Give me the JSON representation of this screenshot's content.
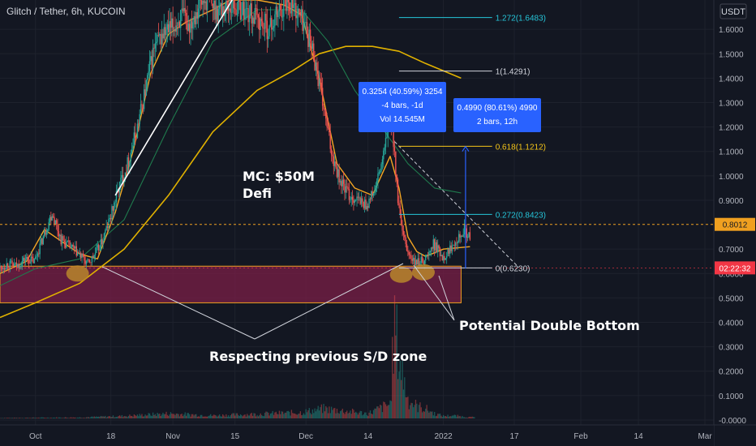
{
  "header": {
    "symbol_label": "Glitch / Tether, 6h, KUCOIN",
    "currency": "USDT"
  },
  "chart_data": {
    "type": "candlestick",
    "symbol": "Glitch / Tether",
    "interval": "6h",
    "exchange": "KUCOIN",
    "ylim": [
      -0.02,
      1.72
    ],
    "y_ticks": [
      {
        "value": 1.6,
        "label": "1.6000"
      },
      {
        "value": 1.5,
        "label": "1.5000"
      },
      {
        "value": 1.4,
        "label": "1.4000"
      },
      {
        "value": 1.3,
        "label": "1.3000"
      },
      {
        "value": 1.2,
        "label": "1.2000"
      },
      {
        "value": 1.1,
        "label": "1.1000"
      },
      {
        "value": 1.0,
        "label": "1.0000"
      },
      {
        "value": 0.9,
        "label": "0.9000"
      },
      {
        "value": 0.7,
        "label": "0.7000"
      },
      {
        "value": 0.6,
        "label": "0.6000"
      },
      {
        "value": 0.5,
        "label": "0.5000"
      },
      {
        "value": 0.4,
        "label": "0.4000"
      },
      {
        "value": 0.3,
        "label": "0.3000"
      },
      {
        "value": 0.2,
        "label": "0.2000"
      },
      {
        "value": 0.1,
        "label": "0.1000"
      },
      {
        "value": 0.0,
        "label": "-0.0000"
      }
    ],
    "x_ticks": [
      {
        "day": 0,
        "label": "Oct"
      },
      {
        "day": 17,
        "label": "18"
      },
      {
        "day": 31,
        "label": "Nov"
      },
      {
        "day": 45,
        "label": "15"
      },
      {
        "day": 61,
        "label": "Dec"
      },
      {
        "day": 75,
        "label": "14"
      },
      {
        "day": 92,
        "label": "2022"
      },
      {
        "day": 108,
        "label": "17"
      },
      {
        "day": 123,
        "label": "Feb"
      },
      {
        "day": 136,
        "label": "14"
      },
      {
        "day": 151,
        "label": "Mar"
      }
    ],
    "x_range_days": [
      -8,
      153
    ],
    "price_path": [
      [
        -8,
        0.62
      ],
      [
        -6,
        0.64
      ],
      [
        -4,
        0.63
      ],
      [
        -2,
        0.66
      ],
      [
        0,
        0.65
      ],
      [
        2,
        0.75
      ],
      [
        4,
        0.85
      ],
      [
        6,
        0.74
      ],
      [
        8,
        0.71
      ],
      [
        10,
        0.68
      ],
      [
        12,
        0.64
      ],
      [
        13,
        0.66
      ],
      [
        15,
        0.72
      ],
      [
        17,
        0.82
      ],
      [
        19,
        0.95
      ],
      [
        21,
        1.05
      ],
      [
        23,
        1.18
      ],
      [
        25,
        1.35
      ],
      [
        27,
        1.52
      ],
      [
        29,
        1.58
      ],
      [
        31,
        1.6
      ],
      [
        33,
        1.65
      ],
      [
        35,
        1.62
      ],
      [
        37,
        1.7
      ],
      [
        39,
        1.72
      ],
      [
        41,
        1.68
      ],
      [
        45,
        1.7
      ],
      [
        49,
        1.66
      ],
      [
        53,
        1.6
      ],
      [
        55,
        1.67
      ],
      [
        57,
        1.72
      ],
      [
        59,
        1.68
      ],
      [
        61,
        1.62
      ],
      [
        63,
        1.5
      ],
      [
        65,
        1.3
      ],
      [
        67,
        1.1
      ],
      [
        69,
        0.98
      ],
      [
        71,
        0.92
      ],
      [
        73,
        0.9
      ],
      [
        75,
        0.88
      ],
      [
        77,
        0.95
      ],
      [
        79,
        1.1
      ],
      [
        80,
        1.25
      ],
      [
        81,
        1.15
      ],
      [
        82,
        0.9
      ],
      [
        83,
        0.76
      ],
      [
        84,
        0.7
      ],
      [
        85,
        0.66
      ],
      [
        86,
        0.64
      ],
      [
        88,
        0.66
      ],
      [
        89,
        0.68
      ],
      [
        90,
        0.72
      ],
      [
        91,
        0.7
      ],
      [
        92,
        0.67
      ],
      [
        93,
        0.68
      ],
      [
        94,
        0.71
      ],
      [
        95,
        0.74
      ],
      [
        96,
        0.76
      ],
      [
        97,
        0.78
      ],
      [
        98,
        0.75
      ]
    ],
    "volume_path": [
      [
        -8,
        0.002
      ],
      [
        10,
        0.004
      ],
      [
        20,
        0.01
      ],
      [
        30,
        0.02
      ],
      [
        40,
        0.012
      ],
      [
        50,
        0.018
      ],
      [
        60,
        0.025
      ],
      [
        65,
        0.04
      ],
      [
        70,
        0.03
      ],
      [
        75,
        0.02
      ],
      [
        80,
        0.06
      ],
      [
        81,
        0.39
      ],
      [
        82,
        0.25
      ],
      [
        84,
        0.08
      ],
      [
        86,
        0.05
      ],
      [
        88,
        0.04
      ],
      [
        90,
        0.02
      ],
      [
        92,
        0.01
      ],
      [
        94,
        0.012
      ],
      [
        98,
        0.005
      ]
    ],
    "ema_short": [
      [
        -8,
        0.6
      ],
      [
        -2,
        0.65
      ],
      [
        2,
        0.78
      ],
      [
        6,
        0.73
      ],
      [
        10,
        0.68
      ],
      [
        14,
        0.66
      ],
      [
        18,
        0.85
      ],
      [
        22,
        1.1
      ],
      [
        26,
        1.42
      ],
      [
        30,
        1.58
      ],
      [
        34,
        1.63
      ],
      [
        40,
        1.68
      ],
      [
        44,
        1.72
      ],
      [
        50,
        1.72
      ],
      [
        56,
        1.7
      ],
      [
        60,
        1.66
      ],
      [
        64,
        1.4
      ],
      [
        68,
        1.05
      ],
      [
        72,
        0.95
      ],
      [
        76,
        0.92
      ],
      [
        80,
        1.08
      ],
      [
        82,
        0.95
      ],
      [
        84,
        0.75
      ],
      [
        86,
        0.69
      ],
      [
        88,
        0.67
      ],
      [
        92,
        0.7
      ],
      [
        98,
        0.71
      ]
    ],
    "ema_mid": [
      [
        -8,
        0.55
      ],
      [
        0,
        0.62
      ],
      [
        10,
        0.66
      ],
      [
        20,
        0.82
      ],
      [
        30,
        1.2
      ],
      [
        40,
        1.55
      ],
      [
        50,
        1.68
      ],
      [
        60,
        1.68
      ],
      [
        66,
        1.55
      ],
      [
        72,
        1.35
      ],
      [
        78,
        1.2
      ],
      [
        84,
        1.05
      ],
      [
        90,
        0.95
      ],
      [
        96,
        0.93
      ]
    ],
    "ema_long": [
      [
        -8,
        0.42
      ],
      [
        0,
        0.48
      ],
      [
        10,
        0.56
      ],
      [
        20,
        0.7
      ],
      [
        30,
        0.92
      ],
      [
        40,
        1.18
      ],
      [
        50,
        1.35
      ],
      [
        58,
        1.43
      ],
      [
        64,
        1.5
      ],
      [
        70,
        1.53
      ],
      [
        76,
        1.53
      ],
      [
        82,
        1.51
      ],
      [
        88,
        1.46
      ],
      [
        96,
        1.4
      ]
    ],
    "trendline": {
      "from": [
        18,
        0.92
      ],
      "to": [
        45,
        1.74
      ]
    },
    "projection_line": {
      "from": [
        81,
        1.14
      ],
      "to": [
        109,
        0.625
      ]
    },
    "current_price_line": 0.8012,
    "fib_levels": [
      {
        "ratio": "1.272",
        "value": 1.6483,
        "label": "1.272(1.6483)",
        "color": "#26c6da"
      },
      {
        "ratio": "1",
        "value": 1.4291,
        "label": "1(1.4291)",
        "color": "#d1d4dc"
      },
      {
        "ratio": "0.618",
        "value": 1.1212,
        "label": "0.618(1.1212)",
        "color": "#f5c518"
      },
      {
        "ratio": "0.272",
        "value": 0.8423,
        "label": "0.272(0.8423)",
        "color": "#26c6da"
      },
      {
        "ratio": "0",
        "value": 0.623,
        "label": "0(0.6230)",
        "color": "#d1d4dc"
      }
    ],
    "sd_zone": {
      "top": 0.63,
      "bottom": 0.48,
      "from_day": -8,
      "to_day": 96,
      "color": "#7b1f47"
    },
    "highlight_dots": [
      {
        "day": 9.5,
        "value": 0.6
      },
      {
        "day": 82.5,
        "value": 0.595
      },
      {
        "day": 87.5,
        "value": 0.605
      }
    ],
    "measure_boxes": [
      {
        "line1": "0.3254 (40.59%) 3254",
        "line2": "-4 bars, -1d",
        "line3": "Vol 14.545M"
      },
      {
        "line1": "0.4990 (80.61%) 4990",
        "line2": "2 bars, 12h"
      }
    ],
    "measure_arrow": {
      "day": 97,
      "from": 0.62,
      "to": 1.12
    },
    "annotations": {
      "mc_line1": "MC: $50M",
      "mc_line2": "Defi",
      "double_bottom": "Potential Double Bottom",
      "sd_zone_text": "Respecting previous S/D zone"
    },
    "price_labels": {
      "current": "0.8012",
      "timer": "02:22:32",
      "timer_price": 0.623
    },
    "colors": {
      "background": "#131722",
      "up": "#26a69a",
      "down": "#ef5350",
      "ema_short": "#f5a623",
      "ema_mid": "#1f7a4d",
      "ema_long": "#e0b100",
      "zone": "#7b1f47",
      "zone_border": "#f0a020",
      "dot": "#b8862b",
      "measure_box": "#2962ff",
      "current_price": "#f0a020",
      "timer": "#f23645"
    }
  }
}
